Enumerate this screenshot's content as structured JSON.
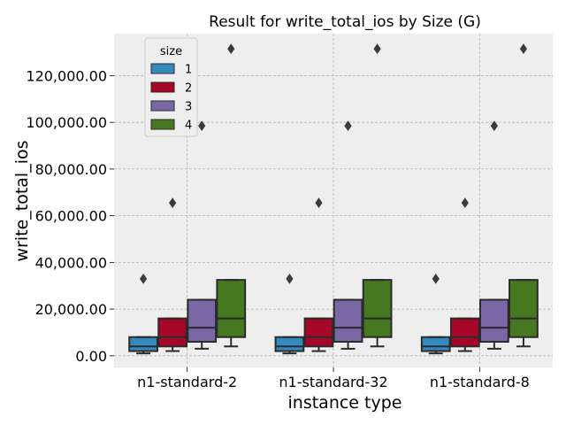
{
  "chart_data": {
    "type": "box",
    "title": "Result for write_total_ios by Size (G)",
    "xlabel": "instance type",
    "ylabel": "write_total_ios",
    "categories": [
      "n1-standard-2",
      "n1-standard-32",
      "n1-standard-8"
    ],
    "ylim": [
      -5000,
      138000
    ],
    "yticks": [
      0,
      20000,
      40000,
      60000,
      80000,
      100000,
      120000
    ],
    "ytick_labels": [
      "0.00",
      "20,000.00",
      "40,000.00",
      "60,000.00",
      "80,000.00",
      "100,000.00",
      "120,000.00"
    ],
    "grid": true,
    "legend": {
      "title": "size",
      "position": "top-left"
    },
    "series": [
      {
        "name": "1",
        "color": "#348abd",
        "boxes": [
          {
            "whisker_low": 1000,
            "q1": 2000,
            "median": 4000,
            "q3": 8000,
            "whisker_high": 8000,
            "outliers": [
              33000
            ]
          },
          {
            "whisker_low": 1000,
            "q1": 2000,
            "median": 4000,
            "q3": 8000,
            "whisker_high": 8000,
            "outliers": [
              33000
            ]
          },
          {
            "whisker_low": 1000,
            "q1": 2000,
            "median": 4000,
            "q3": 8000,
            "whisker_high": 8000,
            "outliers": [
              33000
            ]
          }
        ]
      },
      {
        "name": "2",
        "color": "#a60628",
        "boxes": [
          {
            "whisker_low": 2000,
            "q1": 4000,
            "median": 8000,
            "q3": 16000,
            "whisker_high": 16000,
            "outliers": [
              65500
            ]
          },
          {
            "whisker_low": 2000,
            "q1": 4000,
            "median": 8000,
            "q3": 16000,
            "whisker_high": 16000,
            "outliers": [
              65500
            ]
          },
          {
            "whisker_low": 2000,
            "q1": 4000,
            "median": 8000,
            "q3": 16000,
            "whisker_high": 16000,
            "outliers": [
              65500
            ]
          }
        ]
      },
      {
        "name": "3",
        "color": "#7a68a6",
        "boxes": [
          {
            "whisker_low": 3000,
            "q1": 6000,
            "median": 12000,
            "q3": 24000,
            "whisker_high": 24000,
            "outliers": [
              98500
            ]
          },
          {
            "whisker_low": 3000,
            "q1": 6000,
            "median": 12000,
            "q3": 24000,
            "whisker_high": 24000,
            "outliers": [
              98500
            ]
          },
          {
            "whisker_low": 3000,
            "q1": 6000,
            "median": 12000,
            "q3": 24000,
            "whisker_high": 24000,
            "outliers": [
              98500
            ]
          }
        ]
      },
      {
        "name": "4",
        "color": "#467821",
        "boxes": [
          {
            "whisker_low": 4000,
            "q1": 8000,
            "median": 16000,
            "q3": 32500,
            "whisker_high": 32500,
            "outliers": [
              131500
            ]
          },
          {
            "whisker_low": 4000,
            "q1": 8000,
            "median": 16000,
            "q3": 32500,
            "whisker_high": 32500,
            "outliers": [
              131500
            ]
          },
          {
            "whisker_low": 4000,
            "q1": 8000,
            "median": 16000,
            "q3": 32500,
            "whisker_high": 32500,
            "outliers": [
              131500
            ]
          }
        ]
      }
    ]
  }
}
